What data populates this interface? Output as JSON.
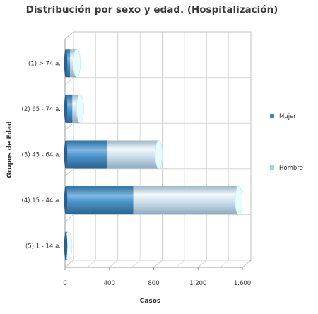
{
  "chart_data": {
    "type": "bar",
    "orientation": "horizontal",
    "stacked": true,
    "title": "Distribución por sexo y edad. (Hospitalización)",
    "xlabel": "Casos",
    "ylabel": "Grupos de Edad",
    "categories": [
      "(1) > 74 a.",
      "(2) 65 - 74 a.",
      "(3) 45 - 64 a.",
      "(4) 15 - 44 a.",
      "(5) 1 - 14 a."
    ],
    "series": [
      {
        "name": "Mujer",
        "values": [
          40,
          60,
          370,
          610,
          10
        ]
      },
      {
        "name": "Hombre",
        "values": [
          60,
          70,
          470,
          950,
          15
        ]
      }
    ],
    "xlim": [
      0,
      1600
    ],
    "xticks": [
      0,
      400,
      800,
      1200,
      1600
    ],
    "xtick_labels": [
      "0",
      "400",
      "800",
      "1.200",
      "1.600"
    ],
    "grid": true,
    "legend_position": "right",
    "colors": {
      "Mujer": "#3d86c0",
      "Hombre": "#a8cde6"
    }
  }
}
